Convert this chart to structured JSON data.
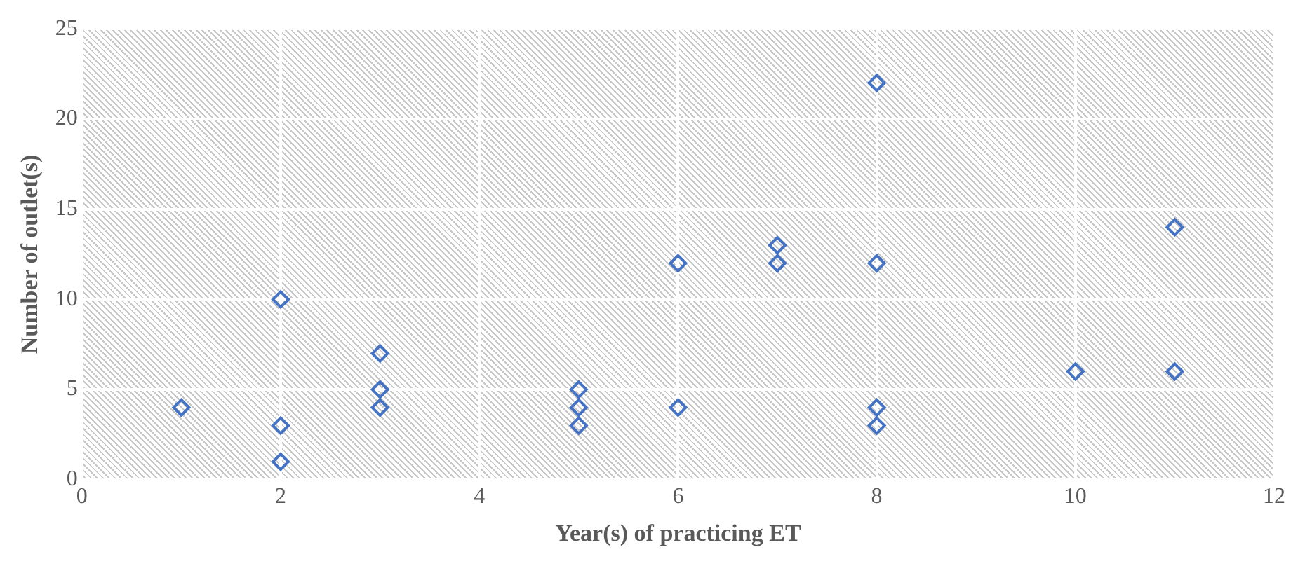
{
  "chart_data": {
    "type": "scatter",
    "xlabel": "Year(s) of practicing ET",
    "ylabel": "Number of outlet(s)",
    "x": [
      1,
      2,
      2,
      2,
      3,
      3,
      3,
      5,
      5,
      5,
      6,
      6,
      7,
      7,
      8,
      8,
      8,
      8,
      10,
      11,
      11
    ],
    "series": [
      {
        "color": "#4472c4",
        "values": [
          4,
          10,
          3,
          1,
          7,
          5,
          4,
          5,
          4,
          3,
          12,
          4,
          13,
          12,
          22,
          12,
          4,
          3,
          6,
          14,
          6
        ]
      }
    ],
    "xlim": [
      0,
      12
    ],
    "xticks": [
      0,
      2,
      4,
      6,
      8,
      10,
      12
    ],
    "ylim": [
      0,
      25
    ],
    "yticks": [
      0,
      5,
      10,
      15,
      20,
      25
    ],
    "grid": true,
    "legend": false,
    "marker": "diamond"
  }
}
